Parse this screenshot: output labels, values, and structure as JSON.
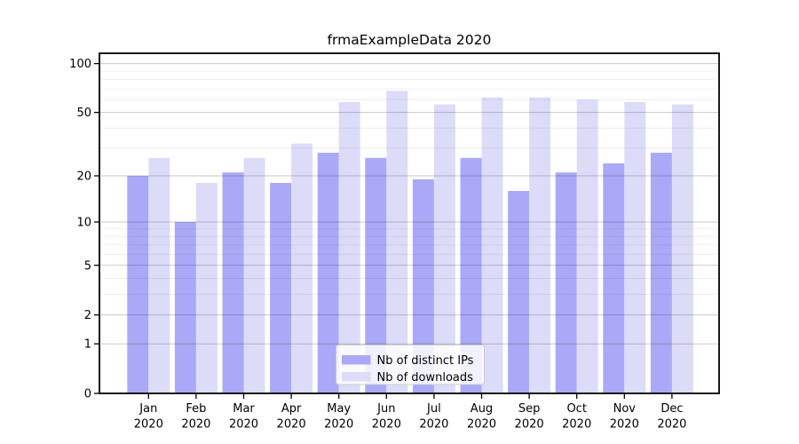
{
  "figure": {
    "title": "frmaExampleData 2020"
  },
  "chart_data": {
    "type": "bar",
    "title": "frmaExampleData 2020",
    "categories": [
      "Jan",
      "Feb",
      "Mar",
      "Apr",
      "May",
      "Jun",
      "Jul",
      "Aug",
      "Sep",
      "Oct",
      "Nov",
      "Dec"
    ],
    "category_year": "2020",
    "series": [
      {
        "name": "Nb of distinct IPs",
        "color": "#a9a9f7",
        "values": [
          20,
          10,
          21,
          18,
          28,
          26,
          19,
          26,
          16,
          21,
          24,
          28
        ]
      },
      {
        "name": "Nb of downloads",
        "color": "#dcdcf9",
        "values": [
          26,
          18,
          26,
          32,
          58,
          68,
          56,
          62,
          62,
          60,
          58,
          56
        ]
      }
    ],
    "yscale": "log1p",
    "ylim": [
      0,
      116
    ],
    "ytick_labels": [
      "100",
      "50",
      "20",
      "10",
      "5",
      "2",
      "1",
      "0"
    ],
    "ytick_values": [
      100,
      50,
      20,
      10,
      5,
      2,
      1,
      0
    ],
    "minor_grid_values": [
      90,
      80,
      70,
      60,
      40,
      30,
      9,
      8,
      7,
      6,
      4,
      3
    ],
    "grid": true,
    "grid_major_color": "#c9c9c9",
    "grid_minor_color": "#ededed",
    "axis_color": "#000000",
    "legend_position": "bottom-center",
    "legend_entries": [
      "Nb of distinct IPs",
      "Nb of downloads"
    ]
  }
}
